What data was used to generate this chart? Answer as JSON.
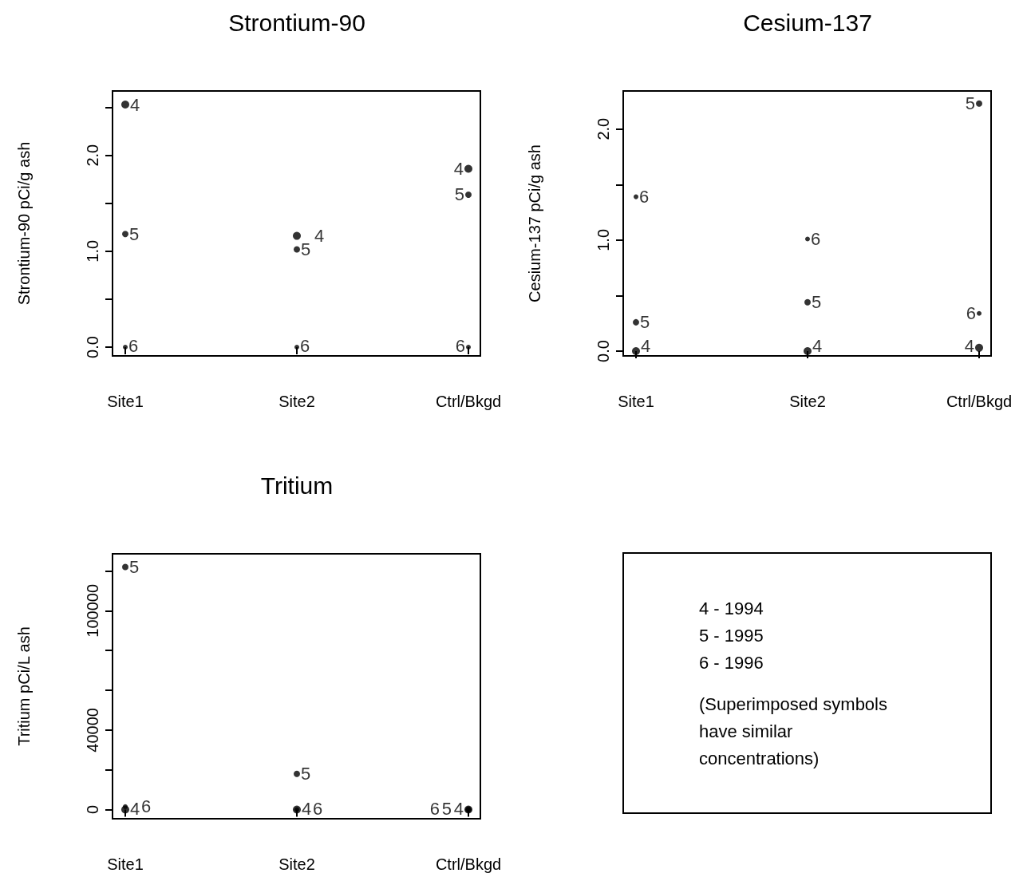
{
  "chart_data": [
    {
      "type": "scatter",
      "title": "Strontium-90",
      "ylabel": "Strontium-90 pCi/g ash",
      "categories": [
        "Site1",
        "Site2",
        "Ctrl/Bkgd"
      ],
      "ylim": [
        -0.1,
        2.68
      ],
      "yticks": [
        {
          "value": 0,
          "label": "0.0"
        },
        {
          "value": 0.5,
          "label": null
        },
        {
          "value": 1,
          "label": "1.0"
        },
        {
          "value": 1.5,
          "label": null
        },
        {
          "value": 2,
          "label": "2.0"
        },
        {
          "value": 2.5,
          "label": null
        }
      ],
      "series": [
        {
          "name": "4",
          "color": "#000000",
          "values": [
            2.53,
            1.16,
            1.86
          ]
        },
        {
          "name": "5",
          "color": "#000000",
          "values": [
            1.18,
            1.02,
            1.59
          ]
        },
        {
          "name": "6",
          "color": "#000000",
          "values": [
            0,
            0,
            0
          ]
        }
      ]
    },
    {
      "type": "scatter",
      "title": "Cesium-137",
      "ylabel": "Cesium-137 pCi/g ash",
      "categories": [
        "Site1",
        "Site2",
        "Ctrl/Bkgd"
      ],
      "ylim": [
        -0.05,
        2.35
      ],
      "yticks": [
        {
          "value": 0,
          "label": "0.0"
        },
        {
          "value": 0.5,
          "label": null
        },
        {
          "value": 1,
          "label": "1.0"
        },
        {
          "value": 1.5,
          "label": null
        },
        {
          "value": 2,
          "label": "2.0"
        }
      ],
      "series": [
        {
          "name": "4",
          "color": "#000000",
          "values": [
            0,
            0,
            0.03
          ]
        },
        {
          "name": "5",
          "color": "#000000",
          "values": [
            0.26,
            0.44,
            2.23
          ]
        },
        {
          "name": "6",
          "color": "#000000",
          "values": [
            1.39,
            1.01,
            0.34
          ]
        }
      ]
    },
    {
      "type": "scatter",
      "title": "Tritium",
      "ylabel": "Tritium pCi/L ash",
      "categories": [
        "Site1",
        "Site2",
        "Ctrl/Bkgd"
      ],
      "ylim": [
        -5000,
        129000
      ],
      "yticks": [
        0,
        {
          "value": 20000,
          "label": null
        },
        40000,
        {
          "value": 60000,
          "label": null
        },
        {
          "value": 80000,
          "label": null
        },
        100000,
        {
          "value": 120000,
          "label": null
        }
      ],
      "series": [
        {
          "name": "4",
          "color": "#000000",
          "values": [
            0,
            0,
            0
          ]
        },
        {
          "name": "5",
          "color": "#000000",
          "values": [
            122000,
            18000,
            0
          ]
        },
        {
          "name": "6",
          "color": "#000000",
          "values": [
            1500,
            0,
            0
          ]
        }
      ]
    },
    {
      "type": "other",
      "annotations": [
        "4 - 1994",
        "5 - 1995",
        "6 - 1996",
        "(Superimposed symbols have similar concentrations)"
      ]
    }
  ]
}
